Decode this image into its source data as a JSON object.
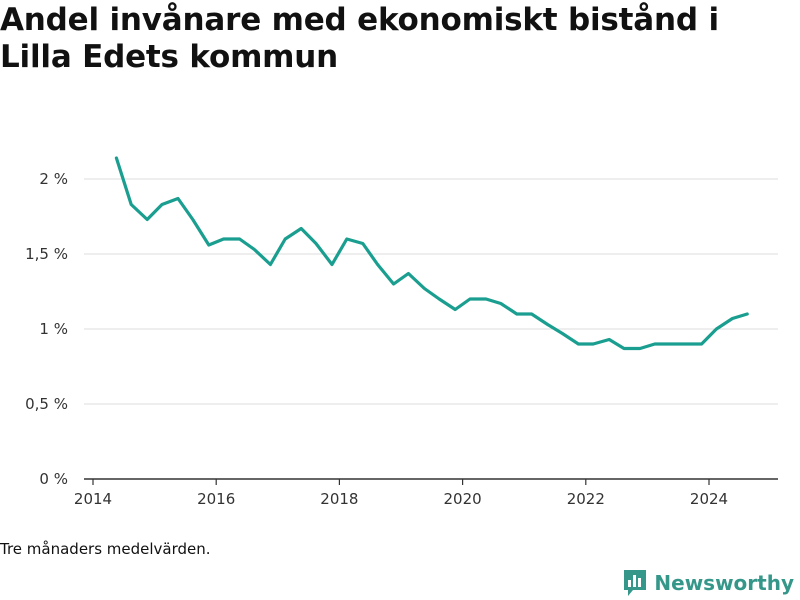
{
  "title": "Andel invånare med ekonomiskt bistånd i Lilla Edets kommun",
  "note": "Tre månaders medelvärden.",
  "brand": {
    "name": "Newsworthy",
    "icon": "bar-chart-speech-bubble-icon",
    "color": "#35978a"
  },
  "chart_data": {
    "type": "line",
    "title": "Andel invånare med ekonomiskt bistånd i Lilla Edets kommun",
    "xlabel": "",
    "ylabel": "",
    "ylim": [
      0,
      2.2
    ],
    "xlim": [
      2013.95,
      2025.1
    ],
    "x_ticks": [
      2014,
      2016,
      2018,
      2020,
      2022,
      2024
    ],
    "x_tick_labels": [
      "2014",
      "2016",
      "2018",
      "2020",
      "2022",
      "2024"
    ],
    "y_ticks": [
      0,
      0.5,
      1,
      1.5,
      2
    ],
    "y_tick_labels": [
      "0 %",
      "0,5 %",
      "1 %",
      "1,5 %",
      "2 %"
    ],
    "grid": true,
    "line_color": "#1a9e90",
    "series": [
      {
        "x": [
          2014.38,
          2014.62,
          2014.88,
          2015.12,
          2015.38,
          2015.62,
          2015.88,
          2016.12,
          2016.38,
          2016.62,
          2016.88,
          2017.12,
          2017.38,
          2017.62,
          2017.88,
          2018.12,
          2018.38,
          2018.62,
          2018.88,
          2019.12,
          2019.38,
          2019.62,
          2019.88,
          2020.12,
          2020.38,
          2020.62,
          2020.88,
          2021.12,
          2021.38,
          2021.62,
          2021.88,
          2022.12,
          2022.38,
          2022.62,
          2022.88,
          2023.12,
          2023.38,
          2023.62,
          2023.88,
          2024.12,
          2024.38,
          2024.62
        ],
        "y": [
          2.14,
          1.83,
          1.73,
          1.83,
          1.87,
          1.73,
          1.56,
          1.6,
          1.6,
          1.53,
          1.43,
          1.6,
          1.67,
          1.57,
          1.43,
          1.6,
          1.57,
          1.43,
          1.3,
          1.37,
          1.27,
          1.2,
          1.13,
          1.2,
          1.2,
          1.17,
          1.1,
          1.1,
          1.03,
          0.97,
          0.9,
          0.9,
          0.93,
          0.87,
          0.87,
          0.9,
          0.9,
          0.9,
          0.9,
          1.0,
          1.07,
          1.1
        ]
      }
    ]
  }
}
